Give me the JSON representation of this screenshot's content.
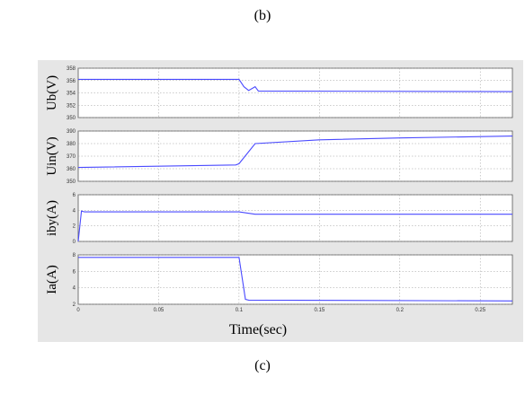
{
  "captions": {
    "top": "(b)",
    "bottom": "(c)"
  },
  "figure": {
    "xlabel": "Time(sec)"
  },
  "colors": {
    "panel_bg": "#e6e6e6",
    "plot_bg": "#ffffff",
    "trace": "#4a4aff",
    "grid": "#9a9a9a"
  },
  "chart_data": [
    {
      "type": "line",
      "ylabel": "Ub(V)",
      "xlim": [
        0,
        0.27
      ],
      "ylim": [
        350,
        358
      ],
      "yticks": [
        350,
        352,
        354,
        356,
        358
      ],
      "xticks": [],
      "grid": true,
      "series": [
        {
          "x": [
            0,
            0.1,
            0.103,
            0.106,
            0.11,
            0.112,
            0.27
          ],
          "y": [
            356.2,
            356.2,
            355,
            354.4,
            355,
            354.3,
            354.2
          ]
        }
      ]
    },
    {
      "type": "line",
      "ylabel": "Uin(V)",
      "xlim": [
        0,
        0.27
      ],
      "ylim": [
        350,
        390
      ],
      "yticks": [
        350,
        360,
        370,
        380,
        390
      ],
      "xticks": [],
      "grid": true,
      "series": [
        {
          "x": [
            0,
            0.098,
            0.1,
            0.11,
            0.15,
            0.2,
            0.27
          ],
          "y": [
            361,
            363,
            364,
            380,
            383,
            384.5,
            386
          ]
        }
      ]
    },
    {
      "type": "line",
      "ylabel": "iby(A)",
      "xlim": [
        0,
        0.27
      ],
      "ylim": [
        0,
        6
      ],
      "yticks": [
        0,
        2,
        4,
        6
      ],
      "xticks": [],
      "grid": true,
      "series": [
        {
          "x": [
            0,
            0.002,
            0.004,
            0.1,
            0.11,
            0.27
          ],
          "y": [
            0,
            3.9,
            3.8,
            3.8,
            3.5,
            3.5
          ]
        }
      ]
    },
    {
      "type": "line",
      "ylabel": "Ia(A)",
      "xlim": [
        0,
        0.27
      ],
      "ylim": [
        2,
        8
      ],
      "yticks": [
        2,
        4,
        6,
        8
      ],
      "xticks": [
        0,
        0.05,
        0.1,
        0.15,
        0.2,
        0.25
      ],
      "xticklabels": [
        "0",
        "0.05",
        "0.1",
        "0.15",
        "0.2",
        "0.25"
      ],
      "grid": true,
      "series": [
        {
          "x": [
            0,
            0.1,
            0.104,
            0.106,
            0.27
          ],
          "y": [
            7.7,
            7.7,
            2.6,
            2.5,
            2.4
          ]
        }
      ]
    }
  ]
}
